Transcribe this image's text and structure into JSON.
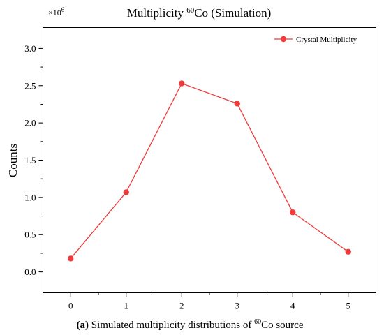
{
  "chart_data": {
    "type": "line",
    "title": {
      "prefix": "Multiplicity ",
      "superscript": "60",
      "suffix": "Co (Simulation)"
    },
    "ylabel": "Counts",
    "xlabel": "",
    "y_multiplier": {
      "base": "×10",
      "exponent": "6"
    },
    "x": [
      0,
      1,
      2,
      3,
      4,
      5
    ],
    "x_ticks": [
      "0",
      "1",
      "2",
      "3",
      "4",
      "5"
    ],
    "y_ticks": [
      "0.0",
      "0.5",
      "1.0",
      "1.5",
      "2.0",
      "2.5",
      "3.0"
    ],
    "xlim": [
      -0.5,
      5.5
    ],
    "ylim": [
      -0.28,
      3.28
    ],
    "grid": false,
    "legend_position": "top-right",
    "series": [
      {
        "name": "Crystal Multiplicity",
        "color": "#f03a3a",
        "values": [
          0.18,
          1.07,
          2.53,
          2.26,
          0.8,
          0.27
        ]
      }
    ]
  },
  "caption": {
    "label": "(a)",
    "text_before": " Simulated multiplicity distributions of ",
    "superscript": "60",
    "text_after": "Co source"
  }
}
